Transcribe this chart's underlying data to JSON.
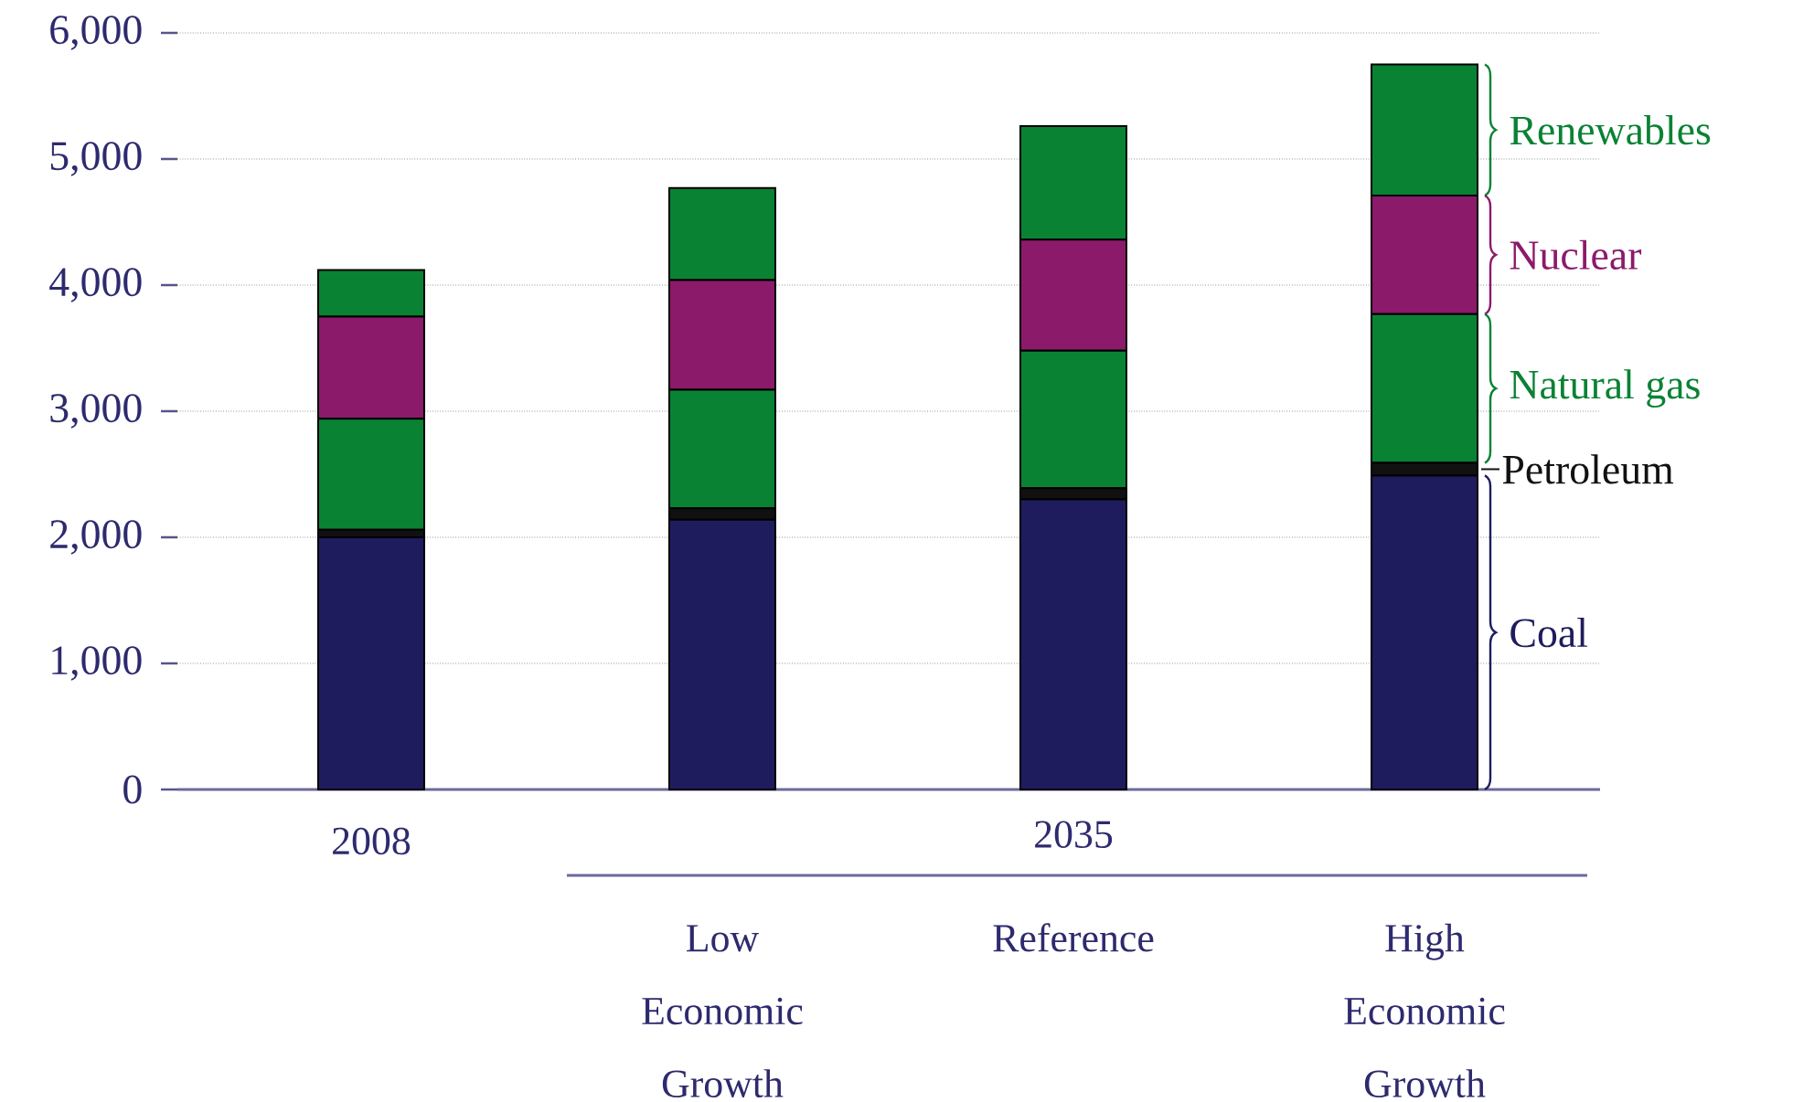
{
  "chart_data": {
    "type": "bar",
    "stacked": true,
    "categories": [
      "2008",
      "Low Economic Growth",
      "Reference",
      "High Economic Growth"
    ],
    "series": [
      {
        "name": "Coal",
        "color": "#1f1c5e",
        "values": [
          2000,
          2140,
          2300,
          2490
        ]
      },
      {
        "name": "Petroleum",
        "color": "#111111",
        "values": [
          60,
          90,
          90,
          100
        ]
      },
      {
        "name": "Natural gas",
        "color": "#0a8234",
        "values": [
          880,
          940,
          1090,
          1180
        ]
      },
      {
        "name": "Nuclear",
        "color": "#8c1a6a",
        "values": [
          810,
          870,
          880,
          940
        ]
      },
      {
        "name": "Renewables",
        "color": "#0a8234",
        "values": [
          370,
          730,
          900,
          1040
        ]
      }
    ],
    "ylim": [
      0,
      6000
    ],
    "yticks": [
      0,
      {
        "value": 1000,
        "label": "1,000"
      },
      {
        "value": 2000,
        "label": "2,000"
      },
      {
        "value": 3000,
        "label": "3,000"
      },
      {
        "value": 4000,
        "label": "4,000"
      },
      {
        "value": 5000,
        "label": "5,000"
      },
      {
        "value": 6000,
        "label": "6,000"
      }
    ],
    "grid": "y",
    "annotations": [
      "2035"
    ]
  }
}
